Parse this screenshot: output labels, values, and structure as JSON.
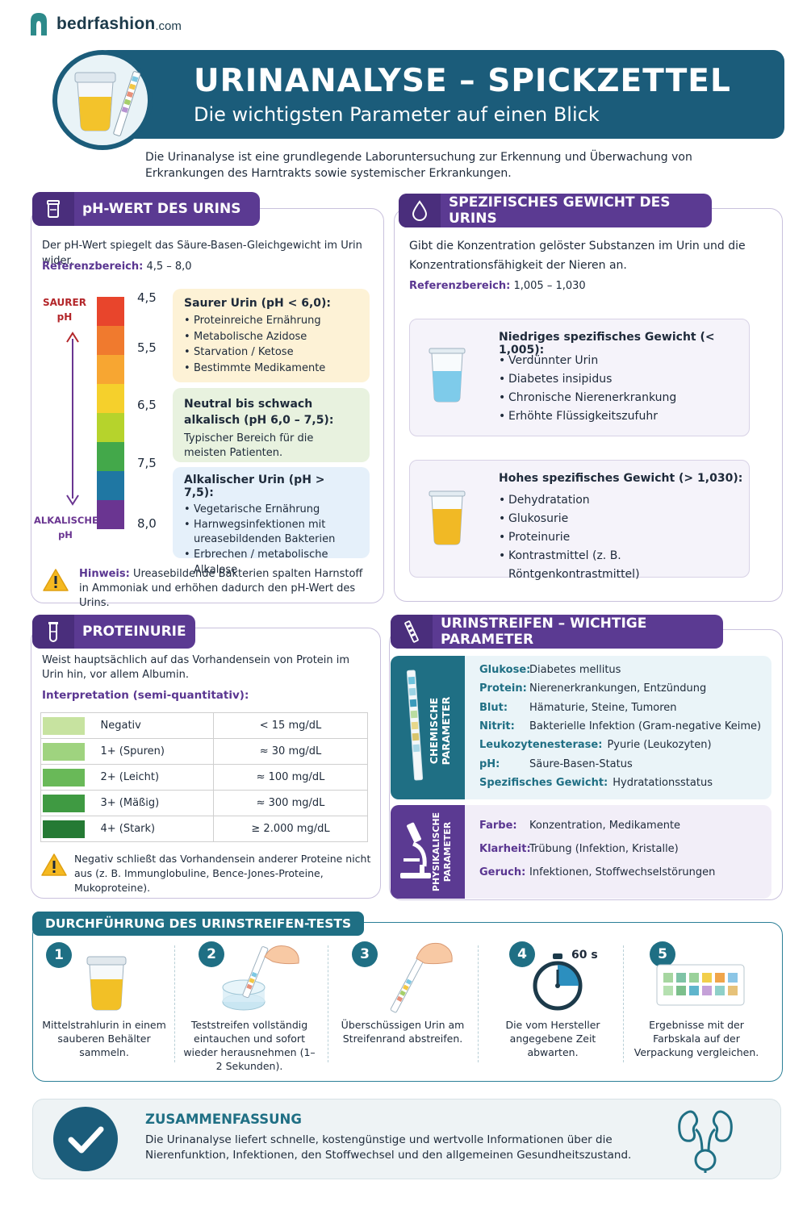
{
  "brand": {
    "name": "bedrfashion",
    "domain": ".com"
  },
  "header": {
    "title": "URINANALYSE – SPICKZETTEL",
    "subtitle": "Die wichtigsten Parameter auf einen Blick"
  },
  "intro": "Die Urinanalyse ist eine grundlegende Laboruntersuchung zur Erkennung und Überwachung von Erkrankungen des Harntrakts sowie systemischer Erkrankungen.",
  "ph": {
    "title": "pH-WERT DES URINS",
    "desc": "Der pH-Wert spiegelt das Säure-Basen-Gleichgewicht im Urin wider.",
    "ref_label": "Referenzbereich:",
    "ref_value": "4,5 – 8,0",
    "acid_label": [
      "SAURER",
      "pH"
    ],
    "alk_label": [
      "ALKALISCHER",
      "pH"
    ],
    "scale": [
      "4,5",
      "5,5",
      "6,5",
      "7,5",
      "8,0"
    ],
    "colors": [
      "#e8452c",
      "#f07a2e",
      "#f7a632",
      "#f5d02c",
      "#b6d32c",
      "#43a84a",
      "#1f77a3",
      "#6a3591"
    ],
    "acidic": {
      "title": "Saurer Urin (pH < 6,0):",
      "items": [
        "Proteinreiche Ernährung",
        "Metabolische Azidose",
        "Starvation / Ketose",
        "Bestimmte Medikamente"
      ]
    },
    "neutral": {
      "title": "Neutral bis schwach alkalisch (pH 6,0 – 7,5):",
      "text": "Typischer Bereich für die meisten Patienten."
    },
    "alkaline": {
      "title": "Alkalischer Urin (pH > 7,5):",
      "items": [
        "Vegetarische Ernährung",
        "Harnwegsinfektionen mit ureasebildenden Bakterien",
        "Erbrechen / metabolische Alkalose"
      ]
    },
    "note_label": "Hinweis:",
    "note_text": "Ureasebildende Bakterien spalten Harnstoff in Ammoniak und erhöhen dadurch den pH-Wert des Urins."
  },
  "sg": {
    "title": "SPEZIFISCHES GEWICHT DES URINS",
    "desc": "Gibt die Konzentration gelöster Substanzen im Urin und die Konzentrationsfähigkeit der Nieren an.",
    "ref_label": "Referenzbereich:",
    "ref_value": "1,005 – 1,030",
    "low": {
      "title": "Niedriges spezifisches Gewicht (< 1,005):",
      "items": [
        "Verdünnter Urin",
        "Diabetes insipidus",
        "Chronische Nierenerkrankung",
        "Erhöhte Flüssigkeitszufuhr"
      ]
    },
    "high": {
      "title": "Hohes spezifisches Gewicht (> 1,030):",
      "items": [
        "Dehydratation",
        "Glukosurie",
        "Proteinurie",
        "Kontrastmittel (z. B. Röntgenkontrastmittel)"
      ]
    }
  },
  "prot": {
    "title": "PROTEINURIE",
    "desc": "Weist hauptsächlich auf das Vorhandensein von Protein im Urin hin, vor allem Albumin.",
    "interp": "Interpretation (semi-quantitativ):",
    "rows": [
      {
        "name": "Negativ",
        "value": "< 15 mg/dL",
        "color": "#c7e3a0"
      },
      {
        "name": "1+ (Spuren)",
        "value": "≈ 30 mg/dL",
        "color": "#9fd37f"
      },
      {
        "name": "2+ (Leicht)",
        "value": "≈ 100 mg/dL",
        "color": "#69b958"
      },
      {
        "name": "3+ (Mäßig)",
        "value": "≈ 300 mg/dL",
        "color": "#3f9a42"
      },
      {
        "name": "4+ (Stark)",
        "value": "≥ 2.000 mg/dL",
        "color": "#257a34"
      }
    ],
    "note": "Negativ schließt das Vorhandensein anderer Proteine nicht aus (z. B. Immunglobuline, Bence-Jones-Proteine, Mukoproteine)."
  },
  "strip": {
    "title": "URINSTREIFEN – WICHTIGE PARAMETER",
    "chem_label": [
      "CHEMISCHE",
      "PARAMETER"
    ],
    "phys_label": [
      "PHYSIKALISCHE",
      "PARAMETER"
    ],
    "chem": [
      {
        "k": "Glukose:",
        "v": "Diabetes mellitus"
      },
      {
        "k": "Protein:",
        "v": "Nierenerkrankungen, Entzündung"
      },
      {
        "k": "Blut:",
        "v": "Hämaturie, Steine, Tumoren"
      },
      {
        "k": "Nitrit:",
        "v": "Bakterielle Infektion (Gram-negative Keime)"
      },
      {
        "k": "Leukozytenesterase:",
        "v": "Pyurie (Leukozyten)"
      },
      {
        "k": "pH:",
        "v": "Säure-Basen-Status"
      },
      {
        "k": "Spezifisches Gewicht:",
        "v": "Hydratationsstatus"
      }
    ],
    "phys": [
      {
        "k": "Farbe:",
        "v": "Konzentration, Medikamente"
      },
      {
        "k": "Klarheit:",
        "v": "Trübung (Infektion, Kristalle)"
      },
      {
        "k": "Geruch:",
        "v": "Infektionen, Stoffwechselstörungen"
      }
    ]
  },
  "steps": {
    "title": "DURCHFÜHRUNG DES URINSTREIFEN-TESTS",
    "timer": "60 s",
    "items": [
      {
        "n": "1",
        "text": "Mittelstrahlurin in einem sauberen Behälter sammeln."
      },
      {
        "n": "2",
        "text": "Teststreifen vollständig eintauchen und sofort wieder herausnehmen (1–2 Sekunden)."
      },
      {
        "n": "3",
        "text": "Überschüssigen Urin am Streifenrand abstreifen."
      },
      {
        "n": "4",
        "text": "Die vom Hersteller angegebene Zeit abwarten."
      },
      {
        "n": "5",
        "text": "Ergebnisse mit der Farbskala auf der Verpackung vergleichen."
      }
    ]
  },
  "summary": {
    "title": "ZUSAMMENFASSUNG",
    "text": "Die Urinanalyse liefert schnelle, kostengünstige und wertvolle Informationen über die Nierenfunktion, Infektionen, den Stoffwechsel und den allgemeinen Gesundheitszustand."
  }
}
